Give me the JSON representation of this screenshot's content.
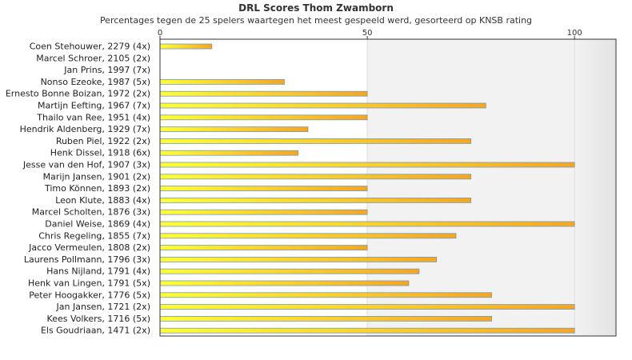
{
  "chart_data": {
    "type": "bar",
    "orientation": "horizontal",
    "title": "DRL Scores Thom Zwamborn",
    "subtitle": "Percentages tegen de 25 spelers waartegen het meest gespeeld werd, gesorteerd op KNSB rating",
    "xlim": [
      0,
      110
    ],
    "xticks": [
      "0",
      "50",
      "100"
    ],
    "grid": true,
    "categories": [
      "Coen Stehouwer, 2279 (4x)",
      "Marcel Schroer, 2105 (2x)",
      "Jan Prins, 1997 (7x)",
      "Nonso Ezeoke, 1987 (5x)",
      "Ernesto Bonne Boizan, 1972 (2x)",
      "Martijn Eefting, 1967 (7x)",
      "Thailo van Ree, 1951 (4x)",
      "Hendrik Aldenberg, 1929 (7x)",
      "Ruben Piel, 1922 (2x)",
      "Henk Dissel, 1918 (6x)",
      "Jesse van den Hof, 1907 (3x)",
      "Marijn Jansen, 1901 (2x)",
      "Timo Können, 1893 (2x)",
      "Leon Klute, 1883 (4x)",
      "Marcel Scholten, 1876 (3x)",
      "Daniel Weise, 1869 (4x)",
      "Chris Regeling, 1855 (7x)",
      "Jacco Vermeulen, 1808 (2x)",
      "Laurens Pollmann, 1796 (3x)",
      "Hans Nijland, 1791 (4x)",
      "Henk van Lingen, 1791 (5x)",
      "Peter Hoogakker, 1776 (5x)",
      "Jan Jansen, 1721 (2x)",
      "Kees Volkers, 1716 (5x)",
      "Els Goudriaan, 1471 (2x)"
    ],
    "values": [
      12.5,
      0,
      0,
      30,
      50,
      78.6,
      50,
      35.7,
      75,
      33.3,
      100,
      75,
      50,
      75,
      50,
      100,
      71.4,
      50,
      66.7,
      62.5,
      60,
      80,
      100,
      80,
      100
    ],
    "colors": {
      "bar_start": "#ffff33",
      "bar_end": "#f5a623",
      "bar_stroke": "#7799bb",
      "band_light": "#ffffff",
      "band_mid": "#f2f2f2",
      "band_edge": "#e6e6e6",
      "axis": "#333333"
    }
  }
}
